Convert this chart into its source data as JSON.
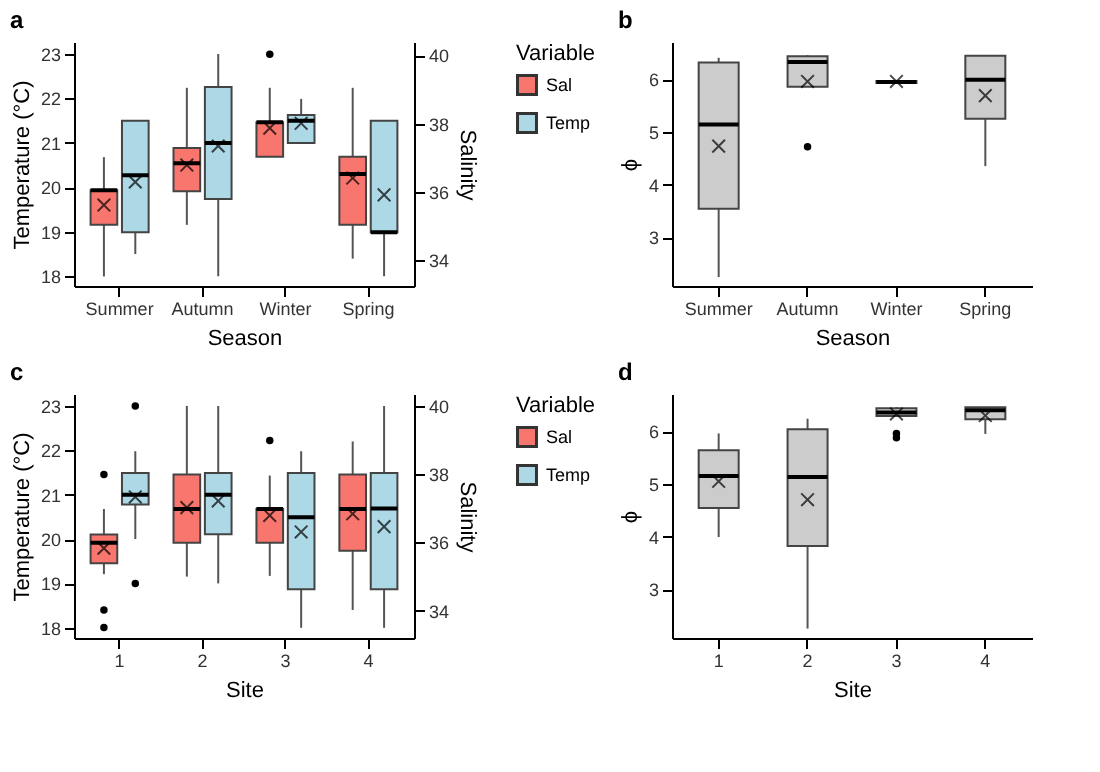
{
  "chart_data": [
    {
      "type": "box",
      "title": "a",
      "xlabel": "Season",
      "ylabel": "Temperature (°C)",
      "y2label": "Salinity",
      "legend_title": "Variable",
      "legend": "right",
      "categories": [
        "Summer",
        "Autumn",
        "Winter",
        "Spring"
      ],
      "ylim": [
        17.78,
        23.27
      ],
      "yticks": [
        18,
        19,
        20,
        21,
        22,
        23
      ],
      "y2lim": [
        33.25,
        40.39
      ],
      "y2ticks": [
        34,
        36,
        38,
        40
      ],
      "series": [
        {
          "name": "Sal",
          "color": "#f8766d",
          "axis": "y2",
          "boxes": [
            {
              "low": 33.53,
              "q1": 35.04,
              "median": 36.05,
              "q3": 36.05,
              "high": 37.02,
              "mean": 35.62
            },
            {
              "low": 35.04,
              "q1": 36.02,
              "median": 36.84,
              "q3": 37.29,
              "high": 39.05,
              "mean": 36.79
            },
            {
              "low": 37.03,
              "q1": 37.03,
              "median": 38.04,
              "q3": 38.04,
              "high": 39.05,
              "mean": 37.87,
              "outliers": [
                40.03
              ]
            },
            {
              "low": 34.05,
              "q1": 35.04,
              "median": 36.53,
              "q3": 37.03,
              "high": 39.05,
              "mean": 36.41
            }
          ]
        },
        {
          "name": "Temp",
          "color": "#add8e6",
          "boxes": [
            {
              "low": 18.5,
              "q1": 18.99,
              "median": 20.27,
              "q3": 21.5,
              "high": 21.5,
              "mean": 20.12
            },
            {
              "low": 18.0,
              "q1": 19.74,
              "median": 21.0,
              "q3": 22.26,
              "high": 23.0,
              "mean": 20.93
            },
            {
              "low": 21.0,
              "q1": 21.0,
              "median": 21.5,
              "q3": 21.63,
              "high": 21.99,
              "mean": 21.44
            },
            {
              "low": 18.0,
              "q1": 18.99,
              "median": 18.99,
              "q3": 21.5,
              "high": 21.5,
              "mean": 19.83
            }
          ]
        }
      ]
    },
    {
      "type": "box",
      "title": "b",
      "xlabel": "Season",
      "ylabel": "ϕ",
      "categories": [
        "Summer",
        "Autumn",
        "Winter",
        "Spring"
      ],
      "ylim": [
        2.07,
        6.71
      ],
      "yticks": [
        3,
        4,
        5,
        6
      ],
      "series": [
        {
          "color": "#cccccc",
          "boxes": [
            {
              "low": 2.24,
              "q1": 3.54,
              "median": 5.14,
              "q3": 6.32,
              "high": 6.41,
              "mean": 4.73
            },
            {
              "low": 5.86,
              "q1": 5.86,
              "median": 6.33,
              "q3": 6.44,
              "high": 6.46,
              "mean": 5.96,
              "outliers": [
                4.72
              ]
            },
            {
              "low": 5.93,
              "q1": 5.93,
              "median": 5.95,
              "q3": 5.97,
              "high": 5.97,
              "mean": 5.96
            },
            {
              "low": 4.35,
              "q1": 5.25,
              "median": 5.99,
              "q3": 6.45,
              "high": 6.45,
              "mean": 5.69
            }
          ]
        }
      ]
    },
    {
      "type": "box",
      "title": "c",
      "xlabel": "Site",
      "ylabel": "Temperature (°C)",
      "y2label": "Salinity",
      "legend_title": "Variable",
      "legend": "right",
      "categories": [
        "1",
        "2",
        "3",
        "4"
      ],
      "ylim": [
        17.77,
        23.27
      ],
      "yticks": [
        18,
        19,
        20,
        21,
        22,
        23
      ],
      "y2lim": [
        33.2,
        40.35
      ],
      "y2ticks": [
        34,
        36,
        38,
        40
      ],
      "series": [
        {
          "name": "Sal",
          "color": "#f8766d",
          "axis": "y2",
          "boxes": [
            {
              "low": 35.07,
              "q1": 35.39,
              "median": 35.99,
              "q3": 36.23,
              "high": 36.98,
              "mean": 35.83,
              "outliers": [
                37.99,
                34.02,
                33.51
              ]
            },
            {
              "low": 35.0,
              "q1": 35.99,
              "median": 36.98,
              "q3": 37.99,
              "high": 40.0,
              "mean": 37.02
            },
            {
              "low": 35.02,
              "q1": 35.99,
              "median": 36.98,
              "q3": 36.98,
              "high": 37.96,
              "mean": 36.79,
              "outliers": [
                38.99
              ]
            },
            {
              "low": 34.02,
              "q1": 35.76,
              "median": 36.98,
              "q3": 37.99,
              "high": 38.96,
              "mean": 36.84
            }
          ]
        },
        {
          "name": "Temp",
          "color": "#add8e6",
          "boxes": [
            {
              "low": 20.0,
              "q1": 20.78,
              "median": 21.0,
              "q3": 21.49,
              "high": 21.98,
              "mean": 20.95,
              "outliers": [
                23.0,
                19.0
              ]
            },
            {
              "low": 19.0,
              "q1": 20.11,
              "median": 21.0,
              "q3": 21.49,
              "high": 23.0,
              "mean": 20.86
            },
            {
              "low": 18.0,
              "q1": 18.87,
              "median": 20.49,
              "q3": 21.49,
              "high": 21.98,
              "mean": 20.16
            },
            {
              "low": 18.0,
              "q1": 18.87,
              "median": 20.69,
              "q3": 21.49,
              "high": 23.0,
              "mean": 20.28
            }
          ]
        }
      ]
    },
    {
      "type": "box",
      "title": "d",
      "xlabel": "Site",
      "ylabel": "ϕ",
      "categories": [
        "1",
        "2",
        "3",
        "4"
      ],
      "ylim": [
        2.07,
        6.71
      ],
      "yticks": [
        3,
        4,
        5,
        6
      ],
      "series": [
        {
          "color": "#cccccc",
          "boxes": [
            {
              "low": 3.99,
              "q1": 4.54,
              "median": 5.15,
              "q3": 5.64,
              "high": 5.96,
              "mean": 5.05
            },
            {
              "low": 2.25,
              "q1": 3.82,
              "median": 5.13,
              "q3": 6.04,
              "high": 6.24,
              "mean": 4.7
            },
            {
              "low": 6.29,
              "q1": 6.29,
              "median": 6.36,
              "q3": 6.44,
              "high": 6.46,
              "mean": 6.33,
              "outliers": [
                5.96,
                5.88
              ]
            },
            {
              "low": 5.95,
              "q1": 6.23,
              "median": 6.4,
              "q3": 6.46,
              "high": 6.46,
              "mean": 6.3
            }
          ]
        }
      ]
    }
  ]
}
